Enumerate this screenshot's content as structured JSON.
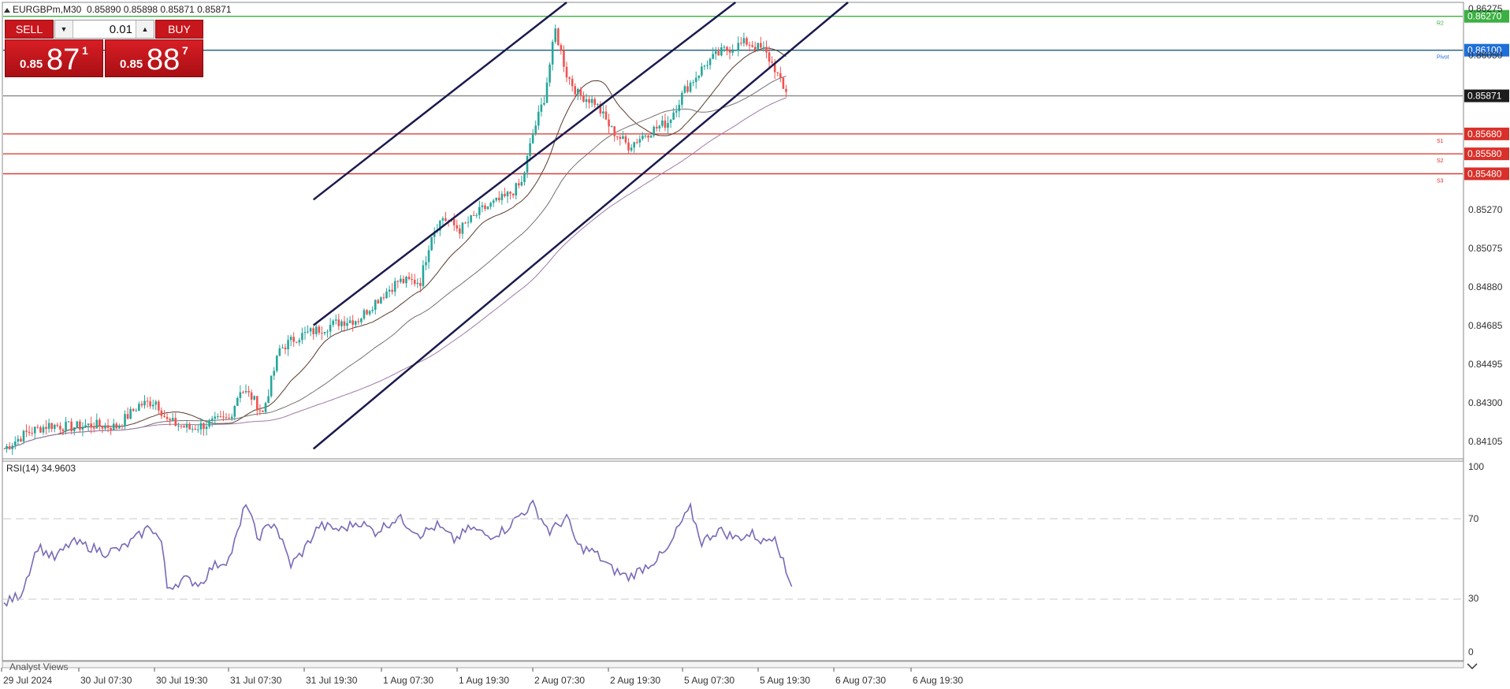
{
  "header": {
    "symbol_label": "EURGBPm,M30",
    "ohlc": "0.85890 0.85898 0.85871 0.85871"
  },
  "trade_panel": {
    "sell_label": "SELL",
    "buy_label": "BUY",
    "lot_value": "0.01",
    "sell_price_small": "0.85",
    "sell_price_big": "87",
    "sell_price_sup": "1",
    "buy_price_small": "0.85",
    "buy_price_big": "88",
    "buy_price_sup": "7",
    "down_arrow": "▼",
    "up_arrow": "▲"
  },
  "price_axis": {
    "ticks": [
      "0.86050",
      "0.85270",
      "0.85075",
      "0.84880",
      "0.84685",
      "0.84495",
      "0.84300",
      "0.84105"
    ],
    "partial_top_tick": "0.86275"
  },
  "levels": [
    {
      "price": 0.8627,
      "label": "0.86270",
      "line_color": "#3cb043",
      "tag_color": "#3cb043",
      "name": "R2",
      "name_color": "#3cb043"
    },
    {
      "price": 0.861,
      "label": "0.86100",
      "line_color": "#1f5a7a",
      "tag_color": "#1e6fd9",
      "name": "Pivot",
      "name_color": "#1e6fd9"
    },
    {
      "price": 0.85871,
      "label": "0.85871",
      "line_color": "#888888",
      "tag_color": "#1c1c1c",
      "name": "",
      "name_color": "#888888"
    },
    {
      "price": 0.8568,
      "label": "0.85680",
      "line_color": "#d9302a",
      "tag_color": "#d9302a",
      "name": "S1",
      "name_color": "#d9302a"
    },
    {
      "price": 0.8558,
      "label": "0.85580",
      "line_color": "#d9302a",
      "tag_color": "#d9302a",
      "name": "S2",
      "name_color": "#d9302a"
    },
    {
      "price": 0.8548,
      "label": "0.85480",
      "line_color": "#d9302a",
      "tag_color": "#d9302a",
      "name": "S3",
      "name_color": "#d9302a"
    }
  ],
  "rsi": {
    "label": "RSI(14) 34.9603",
    "levels": [
      "100",
      "70",
      "30",
      "0"
    ],
    "line_color": "#7b68b8"
  },
  "time_axis": {
    "labels": [
      "29 Jul 2024",
      "30 Jul 07:30",
      "30 Jul 19:30",
      "31 Jul 07:30",
      "31 Jul 19:30",
      "1 Aug 07:30",
      "1 Aug 19:30",
      "2 Aug 07:30",
      "2 Aug 19:30",
      "5 Aug 07:30",
      "5 Aug 19:30",
      "6 Aug 07:30",
      "6 Aug 19:30"
    ]
  },
  "bottom_tab": "Analyst Views",
  "colors": {
    "bull": "#26a69a",
    "bear": "#ef5350",
    "trendline": "#1a1a4e"
  },
  "chart_data": {
    "type": "candlestick",
    "symbol": "EURGBPm",
    "timeframe": "M30",
    "ylim": [
      0.8405,
      0.8634
    ],
    "close_path": [
      [
        0,
        0.841
      ],
      [
        8,
        0.8418
      ],
      [
        16,
        0.8422
      ],
      [
        24,
        0.8421
      ],
      [
        32,
        0.8422
      ],
      [
        40,
        0.8421
      ],
      [
        48,
        0.8432
      ],
      [
        54,
        0.8434
      ],
      [
        58,
        0.8424
      ],
      [
        66,
        0.842
      ],
      [
        76,
        0.8424
      ],
      [
        80,
        0.8425
      ],
      [
        84,
        0.844
      ],
      [
        88,
        0.8436
      ],
      [
        92,
        0.8428
      ],
      [
        98,
        0.846
      ],
      [
        104,
        0.8466
      ],
      [
        112,
        0.847
      ],
      [
        120,
        0.8474
      ],
      [
        126,
        0.8475
      ],
      [
        132,
        0.8484
      ],
      [
        140,
        0.8494
      ],
      [
        148,
        0.8494
      ],
      [
        152,
        0.8518
      ],
      [
        156,
        0.8526
      ],
      [
        162,
        0.852
      ],
      [
        170,
        0.853
      ],
      [
        178,
        0.8536
      ],
      [
        184,
        0.8543
      ],
      [
        188,
        0.8568
      ],
      [
        192,
        0.8586
      ],
      [
        196,
        0.862
      ],
      [
        200,
        0.8598
      ],
      [
        204,
        0.8588
      ],
      [
        210,
        0.8584
      ],
      [
        216,
        0.857
      ],
      [
        222,
        0.8562
      ],
      [
        228,
        0.8568
      ],
      [
        236,
        0.8574
      ],
      [
        242,
        0.859
      ],
      [
        250,
        0.8604
      ],
      [
        256,
        0.861
      ],
      [
        264,
        0.8614
      ],
      [
        270,
        0.861
      ],
      [
        274,
        0.8601
      ],
      [
        277,
        0.859
      ]
    ],
    "rsi_path": [
      [
        0,
        30
      ],
      [
        6,
        35
      ],
      [
        12,
        58
      ],
      [
        18,
        52
      ],
      [
        24,
        60
      ],
      [
        30,
        58
      ],
      [
        36,
        55
      ],
      [
        42,
        57
      ],
      [
        48,
        63
      ],
      [
        52,
        68
      ],
      [
        56,
        60
      ],
      [
        58,
        38
      ],
      [
        64,
        42
      ],
      [
        70,
        40
      ],
      [
        74,
        48
      ],
      [
        80,
        52
      ],
      [
        84,
        68
      ],
      [
        86,
        80
      ],
      [
        90,
        62
      ],
      [
        96,
        70
      ],
      [
        102,
        49
      ],
      [
        106,
        55
      ],
      [
        112,
        68
      ],
      [
        120,
        66
      ],
      [
        126,
        70
      ],
      [
        132,
        65
      ],
      [
        140,
        72
      ],
      [
        148,
        64
      ],
      [
        154,
        68
      ],
      [
        160,
        61
      ],
      [
        166,
        67
      ],
      [
        172,
        63
      ],
      [
        178,
        66
      ],
      [
        184,
        74
      ],
      [
        188,
        78
      ],
      [
        194,
        65
      ],
      [
        200,
        72
      ],
      [
        204,
        58
      ],
      [
        210,
        55
      ],
      [
        216,
        47
      ],
      [
        222,
        43
      ],
      [
        230,
        50
      ],
      [
        236,
        56
      ],
      [
        240,
        68
      ],
      [
        244,
        76
      ],
      [
        248,
        60
      ],
      [
        254,
        66
      ],
      [
        260,
        62
      ],
      [
        266,
        64
      ],
      [
        270,
        60
      ],
      [
        274,
        64
      ],
      [
        276,
        55
      ],
      [
        278,
        45
      ],
      [
        280,
        40
      ]
    ],
    "trend_channel": {
      "upper_line": [
        [
          110,
          0.8535
        ],
        [
          200,
          0.8634
        ]
      ],
      "middle_line": [
        [
          110,
          0.8472
        ],
        [
          260,
          0.8634
        ]
      ],
      "lower_line": [
        [
          110,
          0.841
        ],
        [
          300,
          0.8634
        ]
      ]
    }
  }
}
